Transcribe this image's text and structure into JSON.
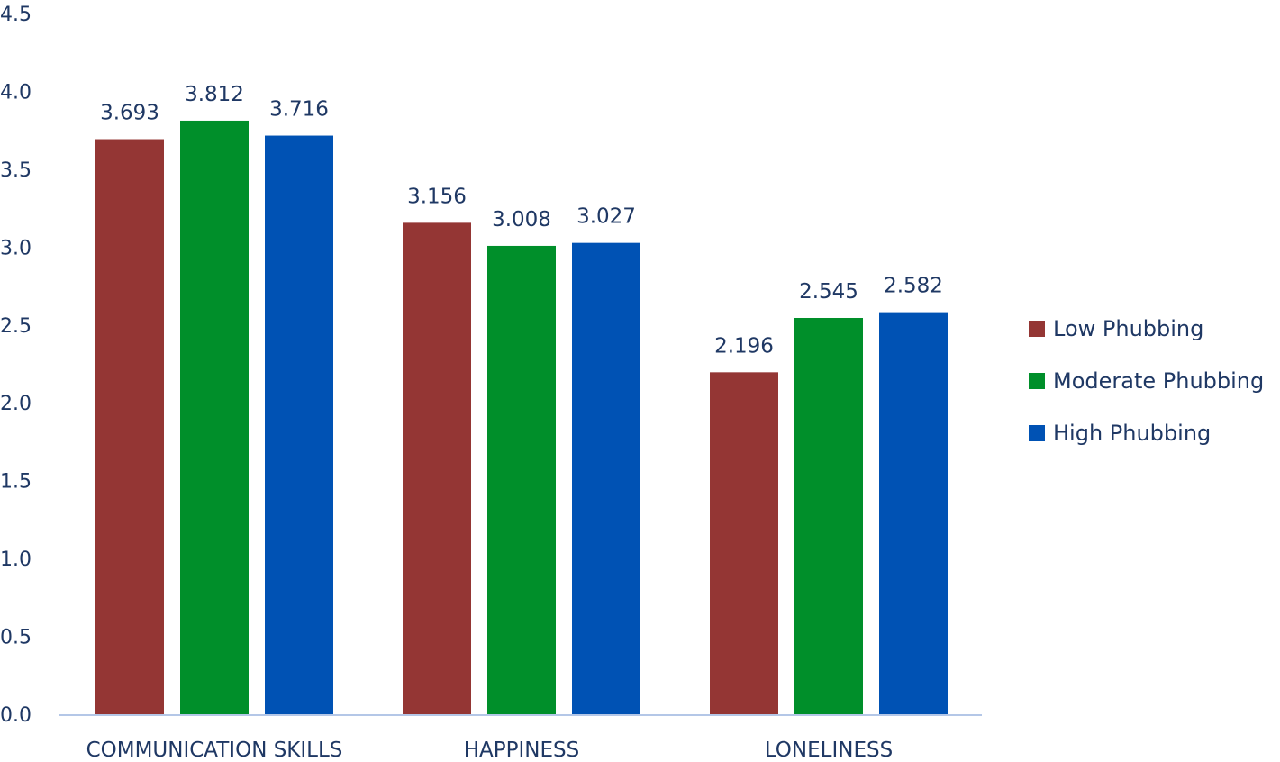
{
  "chart_data": {
    "type": "bar",
    "categories": [
      "COMMUNICATION SKILLS",
      "HAPPINESS",
      "LONELINESS"
    ],
    "series": [
      {
        "name": "Low Phubbing",
        "color": "#943634",
        "values": [
          3.693,
          3.156,
          2.196
        ]
      },
      {
        "name": "Moderate Phubbing",
        "color": "#008f2a",
        "values": [
          3.812,
          3.008,
          2.545
        ]
      },
      {
        "name": "High Phubbing",
        "color": "#0052b4",
        "values": [
          3.716,
          3.027,
          2.582
        ]
      }
    ],
    "value_labels": [
      [
        "3.693",
        "3.156",
        "2.196"
      ],
      [
        "3.812",
        "3.008",
        "2.545"
      ],
      [
        "3.716",
        "3.027",
        "2.582"
      ]
    ],
    "ylim": [
      0,
      4.5
    ],
    "yticks": [
      "0.0",
      "0.5",
      "1.0",
      "1.5",
      "2.0",
      "2.5",
      "3.0",
      "3.5",
      "4.0",
      "4.5"
    ],
    "title": "",
    "xlabel": "",
    "ylabel": "",
    "grid": false,
    "legend_position": "right",
    "axis_line_color": "#b4c7e7",
    "text_color": "#1f3864"
  }
}
